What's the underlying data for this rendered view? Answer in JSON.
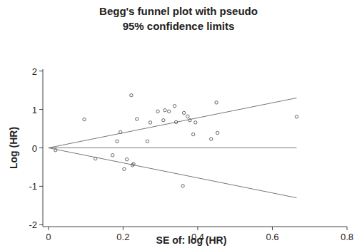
{
  "chart_data": {
    "type": "scatter",
    "title": [
      "Begg's funnel plot with pseudo",
      "95% confidence limits"
    ],
    "x_label": "SE of: log (HR)",
    "y_label": "Log (HR)",
    "xlim": [
      -0.015,
      0.8
    ],
    "ylim": [
      -2.05,
      2.05
    ],
    "xticks": [
      0,
      0.2,
      0.4,
      0.6,
      0.8
    ],
    "yticks": [
      -2,
      -1,
      0,
      1,
      2
    ],
    "grid": false,
    "marker": "hollow-circle",
    "color": "#555555",
    "x": [
      0.019,
      0.096,
      0.126,
      0.172,
      0.184,
      0.193,
      0.203,
      0.21,
      0.225,
      0.228,
      0.222,
      0.237,
      0.265,
      0.273,
      0.293,
      0.308,
      0.312,
      0.323,
      0.338,
      0.342,
      0.363,
      0.36,
      0.373,
      0.379,
      0.388,
      0.394,
      0.436,
      0.45,
      0.453,
      0.665
    ],
    "y": [
      -0.06,
      0.74,
      -0.28,
      -0.19,
      0.17,
      0.41,
      -0.55,
      -0.3,
      -0.45,
      -0.42,
      1.37,
      0.75,
      0.17,
      0.66,
      0.95,
      0.72,
      0.98,
      0.95,
      1.09,
      0.67,
      0.91,
      -0.99,
      0.82,
      0.72,
      0.35,
      0.66,
      0.23,
      1.18,
      0.39,
      0.81
    ],
    "limit_lines": {
      "x": [
        0,
        0.665
      ],
      "upper": [
        0,
        1.3
      ],
      "lower": [
        0,
        -1.3
      ],
      "color": "#777777"
    },
    "reference_line": {
      "x": [
        0,
        0.665
      ],
      "y": 0,
      "color": "#777777"
    }
  }
}
